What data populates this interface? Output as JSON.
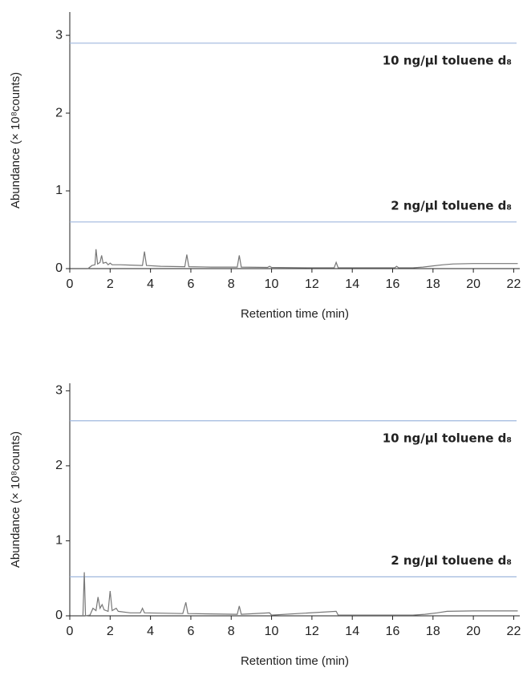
{
  "chart_data": [
    {
      "type": "line",
      "xlabel": "Retention time (min)",
      "ylabel": "Abundance (× 10⁸counts)",
      "xlim": [
        0,
        22.3
      ],
      "ylim": [
        0,
        3.3
      ],
      "xticks": [
        0,
        2,
        4,
        6,
        8,
        10,
        12,
        14,
        16,
        18,
        20,
        22
      ],
      "yticks": [
        0,
        1,
        2,
        3
      ],
      "color": "#777777",
      "grid": false,
      "annotations": [
        {
          "text": "10 ng/µl toluene d₈",
          "y": 2.9,
          "color": "#9fb7de"
        },
        {
          "text": "2 ng/µl toluene d₈",
          "y": 0.6,
          "color": "#9fb7de"
        }
      ],
      "x": [
        0.9,
        1.1,
        1.25,
        1.3,
        1.38,
        1.5,
        1.58,
        1.65,
        1.8,
        1.9,
        2.0,
        2.1,
        2.5,
        3.0,
        3.6,
        3.7,
        3.8,
        4.5,
        5.7,
        5.8,
        5.9,
        7,
        8.3,
        8.4,
        8.5,
        9.8,
        9.9,
        10,
        12,
        13.1,
        13.2,
        13.3,
        15,
        16.1,
        16.2,
        16.3,
        17,
        17.5,
        18,
        18.5,
        19,
        20,
        22.2
      ],
      "y": [
        0.0,
        0.04,
        0.05,
        0.25,
        0.06,
        0.08,
        0.17,
        0.07,
        0.08,
        0.05,
        0.07,
        0.05,
        0.05,
        0.045,
        0.04,
        0.22,
        0.04,
        0.03,
        0.025,
        0.18,
        0.025,
        0.02,
        0.02,
        0.17,
        0.02,
        0.015,
        0.03,
        0.015,
        0.01,
        0.01,
        0.08,
        0.01,
        0.01,
        0.01,
        0.03,
        0.01,
        0.01,
        0.02,
        0.035,
        0.05,
        0.06,
        0.065,
        0.065
      ]
    },
    {
      "type": "line",
      "xlabel": "Retention time (min)",
      "ylabel": "Abundance (× 10⁸counts)",
      "xlim": [
        0,
        22.3
      ],
      "ylim": [
        0,
        3.1
      ],
      "xticks": [
        0,
        2,
        4,
        6,
        8,
        10,
        12,
        14,
        16,
        18,
        20,
        22
      ],
      "yticks": [
        0,
        1,
        2,
        3
      ],
      "color": "#777777",
      "grid": false,
      "annotations": [
        {
          "text": "10 ng/µl toluene d₈",
          "y": 2.6,
          "color": "#9fb7de"
        },
        {
          "text": "2 ng/µl toluene d₈",
          "y": 0.52,
          "color": "#9fb7de"
        }
      ],
      "x": [
        0.65,
        0.72,
        0.78,
        1.0,
        1.15,
        1.3,
        1.4,
        1.5,
        1.6,
        1.7,
        1.9,
        2.0,
        2.1,
        2.3,
        2.4,
        3,
        3.5,
        3.6,
        3.7,
        5.6,
        5.75,
        5.85,
        8.3,
        8.4,
        8.5,
        9.9,
        10,
        13.2,
        13.3,
        17,
        17.6,
        18.2,
        18.7,
        20,
        22.2
      ],
      "y": [
        0.01,
        0.58,
        0.0,
        0.01,
        0.1,
        0.07,
        0.25,
        0.1,
        0.15,
        0.08,
        0.06,
        0.33,
        0.07,
        0.1,
        0.06,
        0.04,
        0.04,
        0.1,
        0.04,
        0.03,
        0.18,
        0.03,
        0.02,
        0.13,
        0.02,
        0.04,
        0.01,
        0.06,
        0.01,
        0.01,
        0.02,
        0.04,
        0.06,
        0.065,
        0.065
      ]
    }
  ]
}
